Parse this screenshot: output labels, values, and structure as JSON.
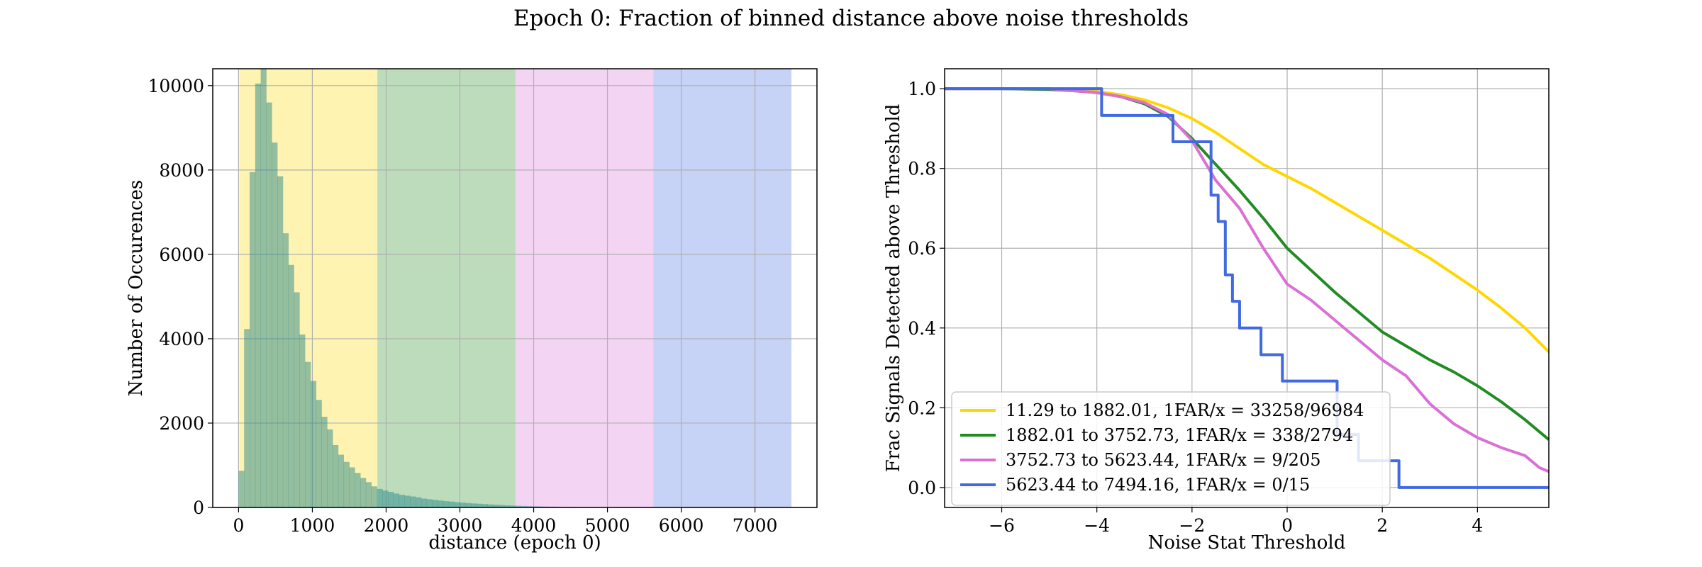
{
  "figure": {
    "suptitle": "Epoch 0: Fraction of binned distance above noise thresholds"
  },
  "chart_data": [
    {
      "type": "bar",
      "subtype": "histogram",
      "title": "",
      "xlabel": "distance (epoch 0)",
      "ylabel": "Number of Occurences",
      "xlim": [
        -350,
        7840
      ],
      "ylim": [
        0,
        10400
      ],
      "xticks": [
        0,
        1000,
        2000,
        3000,
        4000,
        5000,
        6000,
        7000
      ],
      "yticks": [
        0,
        2000,
        4000,
        6000,
        8000,
        10000
      ],
      "grid": true,
      "bin_width": 75,
      "bin_start": 0,
      "bar_color": "#2a8a8a",
      "shaded_bands": [
        {
          "from": 11.29,
          "to": 1882.01,
          "color": "#ffd700"
        },
        {
          "from": 1882.01,
          "to": 3752.73,
          "color": "#228b22"
        },
        {
          "from": 3752.73,
          "to": 5623.44,
          "color": "#da70d6"
        },
        {
          "from": 5623.44,
          "to": 7494.16,
          "color": "#4169e1"
        }
      ],
      "counts": [
        870,
        4230,
        7950,
        10050,
        10400,
        9600,
        8650,
        7850,
        6500,
        5750,
        5100,
        4100,
        3450,
        3000,
        2550,
        2150,
        1850,
        1480,
        1250,
        1080,
        950,
        820,
        700,
        600,
        500,
        440,
        400,
        370,
        330,
        300,
        280,
        260,
        240,
        210,
        195,
        180,
        165,
        150,
        140,
        125,
        115,
        105,
        95,
        88,
        80,
        72,
        65,
        58,
        50,
        45,
        40,
        36,
        32,
        28,
        25,
        22,
        20,
        18,
        16,
        14,
        12,
        11,
        10,
        9,
        8,
        7,
        6,
        6,
        5,
        5,
        4,
        4,
        3,
        3,
        3,
        2,
        2,
        2,
        2,
        1
      ]
    },
    {
      "type": "line",
      "subtype": "step",
      "title": "",
      "xlabel": "Noise Stat Threshold",
      "ylabel": "Frac Signals Detected above Threshold",
      "xlim": [
        -7.2,
        5.5
      ],
      "ylim": [
        -0.05,
        1.05
      ],
      "xticks": [
        -6,
        -4,
        -2,
        0,
        2,
        4
      ],
      "yticks": [
        0.0,
        0.2,
        0.4,
        0.6,
        0.8,
        1.0
      ],
      "grid": true,
      "legend": "lower-left",
      "series": [
        {
          "name": "11.29 to 1882.01, 1FAR/x = 33258/96984",
          "color": "#ffd700",
          "x": [
            -7.2,
            -6,
            -5,
            -4.5,
            -4,
            -3.5,
            -3,
            -2.5,
            -2,
            -1.5,
            -1,
            -0.5,
            0,
            0.5,
            1,
            1.5,
            2,
            2.5,
            3,
            3.5,
            4,
            4.5,
            5,
            5.5
          ],
          "y": [
            1.0,
            1.0,
            0.998,
            0.996,
            0.993,
            0.985,
            0.972,
            0.952,
            0.925,
            0.89,
            0.85,
            0.81,
            0.78,
            0.75,
            0.715,
            0.68,
            0.645,
            0.61,
            0.575,
            0.535,
            0.495,
            0.45,
            0.4,
            0.34
          ]
        },
        {
          "name": "1882.01 to 3752.73, 1FAR/x = 338/2794",
          "color": "#228b22",
          "x": [
            -7.2,
            -6,
            -5,
            -4.5,
            -4,
            -3.5,
            -3,
            -2.5,
            -2,
            -1.5,
            -1,
            -0.5,
            0,
            0.5,
            1,
            1.5,
            2,
            2.5,
            3,
            3.5,
            4,
            4.5,
            5,
            5.5
          ],
          "y": [
            1.0,
            1.0,
            0.998,
            0.995,
            0.99,
            0.98,
            0.962,
            0.93,
            0.875,
            0.81,
            0.745,
            0.675,
            0.6,
            0.545,
            0.49,
            0.44,
            0.39,
            0.355,
            0.32,
            0.29,
            0.255,
            0.215,
            0.17,
            0.12
          ]
        },
        {
          "name": "3752.73 to 5623.44, 1FAR/x = 9/205",
          "color": "#da70d6",
          "x": [
            -7.2,
            -6,
            -5,
            -4,
            -3.5,
            -3,
            -2.5,
            -2,
            -1.5,
            -1,
            -0.5,
            0,
            0.5,
            1,
            1.5,
            2,
            2.5,
            3,
            3.5,
            4,
            4.5,
            5,
            5.3,
            5.5
          ],
          "y": [
            1.0,
            1.0,
            1.0,
            0.99,
            0.98,
            0.965,
            0.935,
            0.87,
            0.77,
            0.7,
            0.6,
            0.51,
            0.47,
            0.42,
            0.37,
            0.32,
            0.28,
            0.21,
            0.16,
            0.125,
            0.1,
            0.08,
            0.05,
            0.04
          ]
        },
        {
          "name": "5623.44 to 7494.16, 1FAR/x = 0/15",
          "color": "#4169e1",
          "x": [
            -7.2,
            -3.9,
            -2.4,
            -1.6,
            -1.45,
            -1.3,
            -1.15,
            -1.0,
            -0.55,
            -0.1,
            1.05,
            1.5,
            2.35,
            5.5
          ],
          "y": [
            1.0,
            0.933,
            0.867,
            0.733,
            0.667,
            0.533,
            0.467,
            0.4,
            0.333,
            0.267,
            0.133,
            0.067,
            0.0,
            0.0
          ]
        }
      ]
    }
  ]
}
